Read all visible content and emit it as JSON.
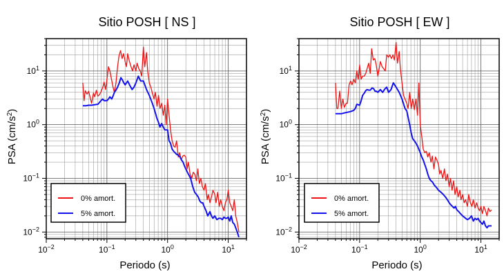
{
  "chart_data": [
    {
      "type": "line",
      "title": "Sitio POSH [ NS ]",
      "xlabel": "Periodo (s)",
      "ylabel_main": "PSA (cm/s",
      "ylabel_sup": "2",
      "ylabel_close": ")",
      "x_scale": "log",
      "y_scale": "log",
      "xlim": [
        0.01,
        20
      ],
      "ylim": [
        0.0075,
        40
      ],
      "grid": true,
      "legend_position": "bottom-left",
      "x_ticks": [
        {
          "base": "10",
          "exp": "−2",
          "value": 0.01
        },
        {
          "base": "10",
          "exp": "−1",
          "value": 0.1
        },
        {
          "base": "10",
          "exp": "0",
          "value": 1
        },
        {
          "base": "10",
          "exp": "1",
          "value": 10
        }
      ],
      "y_ticks": [
        {
          "base": "10",
          "exp": "−2",
          "value": 0.01
        },
        {
          "base": "10",
          "exp": "−1",
          "value": 0.1
        },
        {
          "base": "10",
          "exp": "0",
          "value": 1
        },
        {
          "base": "10",
          "exp": "1",
          "value": 10
        }
      ],
      "series": [
        {
          "name": "0% amort.",
          "color": "#ee1111",
          "x": [
            0.04,
            0.042,
            0.044,
            0.047,
            0.05,
            0.053,
            0.056,
            0.06,
            0.063,
            0.067,
            0.071,
            0.075,
            0.08,
            0.085,
            0.09,
            0.095,
            0.1,
            0.106,
            0.112,
            0.119,
            0.126,
            0.133,
            0.141,
            0.15,
            0.158,
            0.168,
            0.178,
            0.188,
            0.2,
            0.21,
            0.22,
            0.235,
            0.25,
            0.265,
            0.28,
            0.3,
            0.315,
            0.335,
            0.355,
            0.375,
            0.4,
            0.42,
            0.45,
            0.47,
            0.5,
            0.53,
            0.56,
            0.6,
            0.63,
            0.67,
            0.71,
            0.75,
            0.8,
            0.85,
            0.9,
            0.95,
            1.0,
            1.06,
            1.12,
            1.19,
            1.26,
            1.33,
            1.41,
            1.5,
            1.58,
            1.68,
            1.78,
            1.88,
            2.0,
            2.1,
            2.2,
            2.35,
            2.5,
            2.65,
            2.8,
            3.0,
            3.15,
            3.35,
            3.55,
            3.75,
            4.0,
            4.2,
            4.5,
            4.7,
            5.0,
            5.3,
            5.6,
            6.0,
            6.3,
            6.7,
            7.1,
            7.5,
            8.0,
            8.5,
            9.0,
            9.5,
            10.0,
            10.6,
            11.2,
            11.9,
            12.6,
            13.3,
            14.1,
            15.0
          ],
          "y": [
            6.0,
            2.8,
            4.3,
            3.7,
            4.2,
            3.2,
            2.5,
            3.9,
            3.3,
            4.4,
            3.4,
            3.6,
            4.1,
            4.9,
            6.2,
            4.5,
            7.0,
            12.0,
            10.0,
            7.0,
            5.0,
            4.0,
            6.0,
            12.0,
            19.0,
            24.0,
            17.0,
            21.0,
            15.0,
            12.0,
            21.0,
            15.0,
            12.0,
            10.0,
            13.0,
            10.0,
            14.0,
            11.0,
            10.0,
            8.0,
            28.0,
            12.0,
            22.0,
            10.0,
            6.0,
            5.0,
            3.9,
            3.0,
            4.0,
            2.2,
            3.5,
            2.0,
            2.5,
            1.5,
            2.3,
            1.0,
            3.0,
            1.5,
            0.8,
            0.5,
            0.4,
            0.38,
            0.5,
            0.25,
            0.3,
            0.22,
            0.26,
            0.27,
            0.25,
            0.15,
            0.2,
            0.12,
            0.1,
            0.13,
            0.12,
            0.09,
            0.15,
            0.08,
            0.1,
            0.07,
            0.06,
            0.08,
            0.04,
            0.05,
            0.035,
            0.045,
            0.06,
            0.05,
            0.035,
            0.055,
            0.03,
            0.04,
            0.03,
            0.025,
            0.035,
            0.04,
            0.06,
            0.035,
            0.03,
            0.025,
            0.04,
            0.02,
            0.015,
            0.01
          ]
        },
        {
          "name": "5% amort.",
          "color": "#1111ee",
          "x": [
            0.04,
            0.045,
            0.05,
            0.056,
            0.063,
            0.071,
            0.08,
            0.085,
            0.09,
            0.1,
            0.106,
            0.112,
            0.12,
            0.126,
            0.133,
            0.141,
            0.15,
            0.16,
            0.17,
            0.18,
            0.19,
            0.2,
            0.22,
            0.24,
            0.26,
            0.28,
            0.3,
            0.33,
            0.36,
            0.4,
            0.45,
            0.5,
            0.56,
            0.6,
            0.67,
            0.71,
            0.75,
            0.8,
            0.85,
            0.9,
            1.0,
            1.06,
            1.12,
            1.19,
            1.26,
            1.33,
            1.41,
            1.5,
            1.6,
            1.7,
            1.8,
            1.9,
            2.0,
            2.2,
            2.4,
            2.6,
            2.8,
            3.0,
            3.2,
            3.4,
            3.6,
            3.8,
            4.0,
            4.3,
            4.6,
            5.0,
            5.3,
            5.6,
            6.0,
            6.5,
            7.0,
            7.5,
            8.0,
            8.5,
            9.0,
            9.5,
            10.0,
            10.6,
            11.2,
            11.9,
            12.6,
            13.3,
            14.1,
            15.0
          ],
          "y": [
            2.25,
            2.25,
            2.3,
            2.3,
            2.35,
            2.4,
            2.8,
            3.0,
            2.8,
            2.8,
            3.0,
            3.3,
            3.0,
            3.4,
            4.0,
            4.4,
            5.0,
            6.0,
            7.5,
            6.8,
            6.0,
            5.5,
            6.5,
            5.3,
            4.5,
            5.0,
            6.0,
            8.0,
            6.5,
            6.5,
            4.5,
            3.5,
            2.5,
            2.0,
            1.3,
            1.1,
            0.9,
            1.05,
            0.9,
            0.8,
            0.8,
            0.5,
            0.45,
            0.35,
            0.32,
            0.3,
            0.28,
            0.27,
            0.25,
            0.22,
            0.2,
            0.17,
            0.15,
            0.12,
            0.1,
            0.07,
            0.055,
            0.05,
            0.045,
            0.038,
            0.035,
            0.035,
            0.03,
            0.025,
            0.02,
            0.024,
            0.02,
            0.018,
            0.02,
            0.017,
            0.018,
            0.018,
            0.017,
            0.019,
            0.018,
            0.018,
            0.019,
            0.016,
            0.02,
            0.015,
            0.014,
            0.012,
            0.01,
            0.008
          ]
        }
      ]
    },
    {
      "type": "line",
      "title": "Sitio POSH [ EW ]",
      "xlabel": "Periodo (s)",
      "ylabel_main": "PSA (cm/s",
      "ylabel_sup": "2",
      "ylabel_close": ")",
      "x_scale": "log",
      "y_scale": "log",
      "xlim": [
        0.01,
        20
      ],
      "ylim": [
        0.0075,
        40
      ],
      "grid": true,
      "legend_position": "bottom-left",
      "x_ticks": [
        {
          "base": "10",
          "exp": "−2",
          "value": 0.01
        },
        {
          "base": "10",
          "exp": "−1",
          "value": 0.1
        },
        {
          "base": "10",
          "exp": "0",
          "value": 1
        },
        {
          "base": "10",
          "exp": "1",
          "value": 10
        }
      ],
      "y_ticks": [
        {
          "base": "10",
          "exp": "−2",
          "value": 0.01
        },
        {
          "base": "10",
          "exp": "−1",
          "value": 0.1
        },
        {
          "base": "10",
          "exp": "0",
          "value": 1
        },
        {
          "base": "10",
          "exp": "1",
          "value": 10
        }
      ],
      "series": [
        {
          "name": "0% amort.",
          "color": "#ee1111",
          "x": [
            0.04,
            0.042,
            0.044,
            0.047,
            0.05,
            0.053,
            0.056,
            0.06,
            0.063,
            0.067,
            0.071,
            0.075,
            0.08,
            0.085,
            0.09,
            0.095,
            0.1,
            0.106,
            0.112,
            0.119,
            0.126,
            0.133,
            0.141,
            0.15,
            0.158,
            0.168,
            0.178,
            0.188,
            0.2,
            0.21,
            0.22,
            0.235,
            0.25,
            0.265,
            0.28,
            0.3,
            0.315,
            0.335,
            0.355,
            0.375,
            0.4,
            0.42,
            0.45,
            0.47,
            0.5,
            0.53,
            0.56,
            0.6,
            0.63,
            0.67,
            0.71,
            0.75,
            0.8,
            0.85,
            0.9,
            0.95,
            1.0,
            1.06,
            1.12,
            1.19,
            1.26,
            1.33,
            1.41,
            1.5,
            1.58,
            1.68,
            1.78,
            1.88,
            2.0,
            2.1,
            2.2,
            2.35,
            2.5,
            2.65,
            2.8,
            3.0,
            3.15,
            3.35,
            3.55,
            3.75,
            4.0,
            4.2,
            4.5,
            4.7,
            5.0,
            5.3,
            5.6,
            6.0,
            6.3,
            6.7,
            7.1,
            7.5,
            8.0,
            8.5,
            9.0,
            9.5,
            10.0,
            10.6,
            11.2,
            11.9,
            12.6,
            13.3,
            14.1,
            15.0
          ],
          "y": [
            6.0,
            2.0,
            2.0,
            4.2,
            2.0,
            3.0,
            2.1,
            2.5,
            2.5,
            5.5,
            6.5,
            5.5,
            7.0,
            6.0,
            10.0,
            7.0,
            13.0,
            7.0,
            8.0,
            8.0,
            9.0,
            11.0,
            14.0,
            9.0,
            26.0,
            16.0,
            17.0,
            13.0,
            8.0,
            11.0,
            15.0,
            12.0,
            11.0,
            10.0,
            20.0,
            18.0,
            20.0,
            17.0,
            20.0,
            16.0,
            34.0,
            14.0,
            23.0,
            11.0,
            6.0,
            3.5,
            3.0,
            2.5,
            2.0,
            4.0,
            2.0,
            3.0,
            1.9,
            3.0,
            1.5,
            6.0,
            1.0,
            0.6,
            0.35,
            0.3,
            0.32,
            0.25,
            0.3,
            0.2,
            0.26,
            0.15,
            0.25,
            0.22,
            0.18,
            0.12,
            0.14,
            0.1,
            0.15,
            0.09,
            0.12,
            0.07,
            0.1,
            0.06,
            0.09,
            0.05,
            0.07,
            0.045,
            0.06,
            0.04,
            0.05,
            0.035,
            0.04,
            0.03,
            0.05,
            0.035,
            0.03,
            0.04,
            0.028,
            0.035,
            0.028,
            0.025,
            0.03,
            0.022,
            0.03,
            0.025,
            0.02,
            0.028,
            0.024,
            0.026
          ]
        },
        {
          "name": "5% amort.",
          "color": "#1111ee",
          "x": [
            0.04,
            0.045,
            0.05,
            0.056,
            0.063,
            0.071,
            0.08,
            0.085,
            0.09,
            0.1,
            0.106,
            0.112,
            0.12,
            0.126,
            0.133,
            0.141,
            0.15,
            0.16,
            0.17,
            0.18,
            0.19,
            0.2,
            0.22,
            0.24,
            0.26,
            0.28,
            0.3,
            0.33,
            0.36,
            0.4,
            0.45,
            0.5,
            0.56,
            0.6,
            0.67,
            0.71,
            0.75,
            0.8,
            0.85,
            0.9,
            1.0,
            1.06,
            1.12,
            1.19,
            1.26,
            1.33,
            1.41,
            1.5,
            1.6,
            1.7,
            1.8,
            1.9,
            2.0,
            2.2,
            2.4,
            2.6,
            2.8,
            3.0,
            3.2,
            3.4,
            3.6,
            3.8,
            4.0,
            4.3,
            4.6,
            5.0,
            5.3,
            5.6,
            6.0,
            6.5,
            7.0,
            7.5,
            8.0,
            8.5,
            9.0,
            9.5,
            10.0,
            10.6,
            11.2,
            11.9,
            12.6,
            13.3,
            14.1,
            15.0
          ],
          "y": [
            1.6,
            1.6,
            1.6,
            1.65,
            1.7,
            1.75,
            1.85,
            2.0,
            2.4,
            2.3,
            2.8,
            3.5,
            3.9,
            4.3,
            4.5,
            4.4,
            4.4,
            4.8,
            4.7,
            4.2,
            4.2,
            4.0,
            4.5,
            4.0,
            4.6,
            5.0,
            4.0,
            4.5,
            6.0,
            5.0,
            4.0,
            3.0,
            2.0,
            1.8,
            1.0,
            0.7,
            0.55,
            0.5,
            0.45,
            0.4,
            0.3,
            0.25,
            0.22,
            0.18,
            0.15,
            0.12,
            0.1,
            0.09,
            0.085,
            0.075,
            0.07,
            0.065,
            0.06,
            0.055,
            0.05,
            0.045,
            0.04,
            0.035,
            0.032,
            0.03,
            0.028,
            0.03,
            0.026,
            0.024,
            0.022,
            0.02,
            0.019,
            0.018,
            0.017,
            0.018,
            0.02,
            0.016,
            0.018,
            0.017,
            0.018,
            0.016,
            0.015,
            0.014,
            0.016,
            0.013,
            0.012,
            0.013,
            0.013,
            0.013
          ]
        }
      ]
    }
  ]
}
